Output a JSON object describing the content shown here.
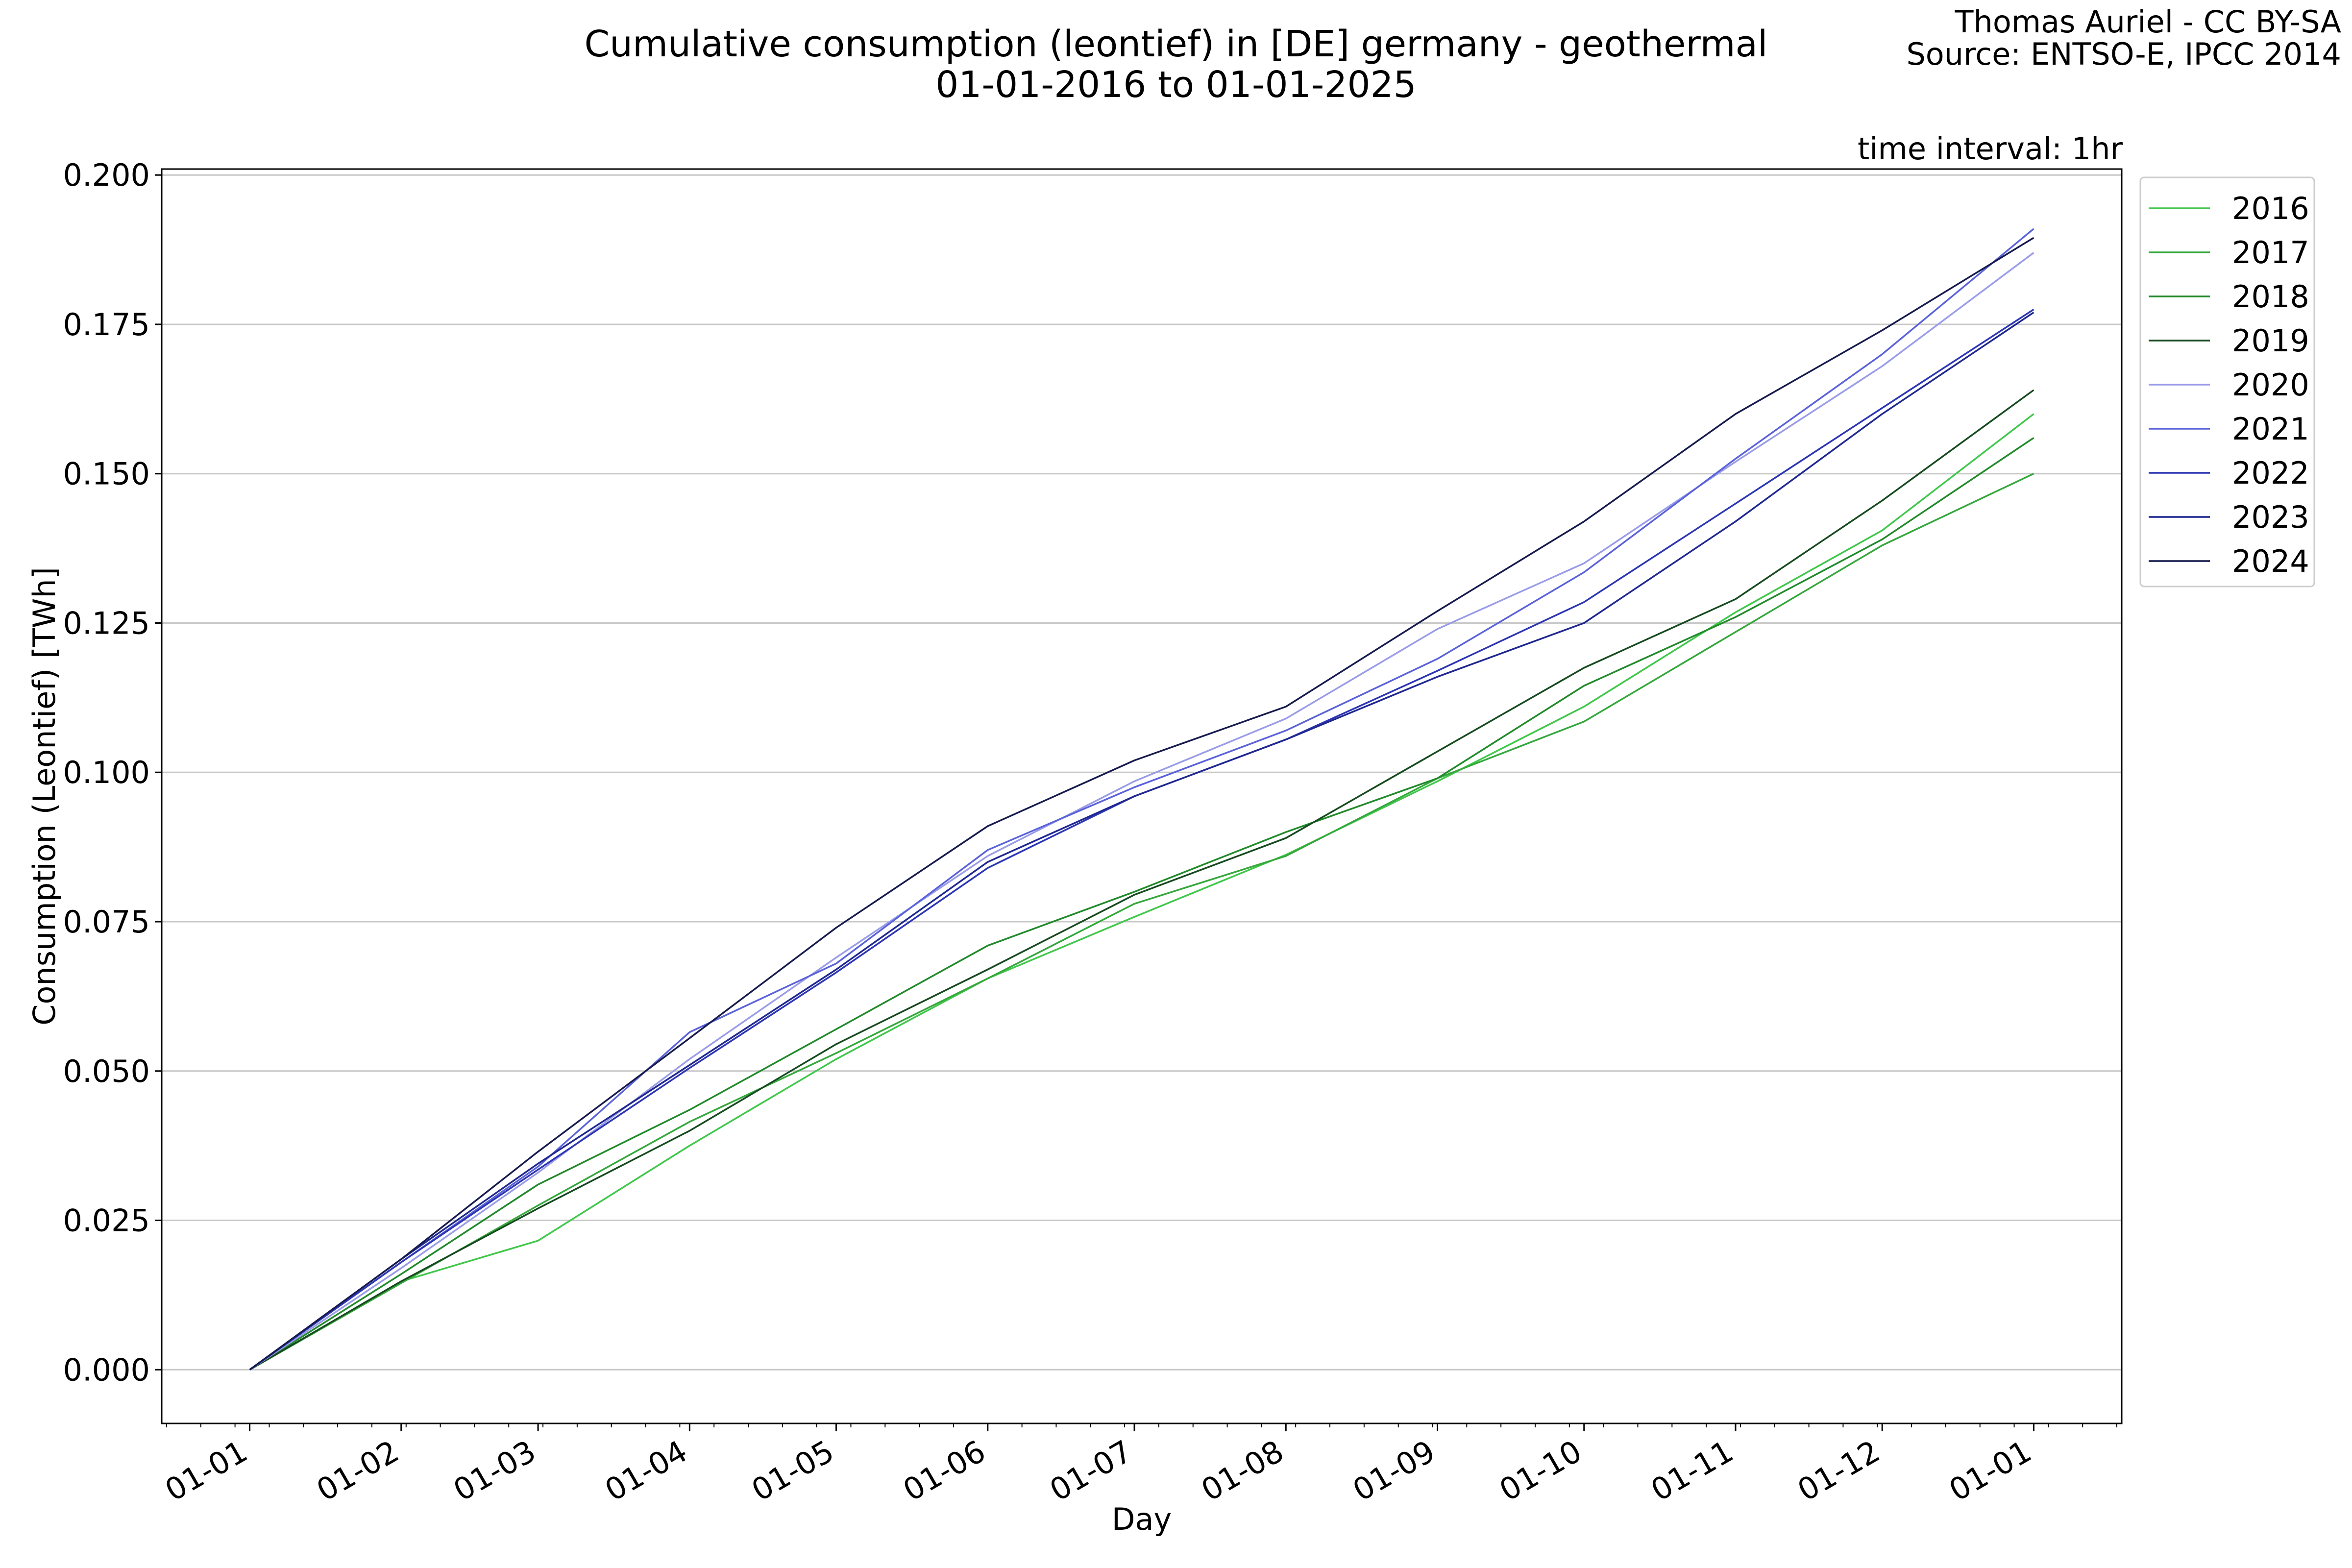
{
  "chart_data": {
    "type": "line",
    "title": "Cumulative consumption (leontief) in [DE] germany - geothermal",
    "subtitle": "01-01-2016 to 01-01-2025",
    "attribution": [
      "Thomas Auriel - CC BY-SA",
      "Source: ENTSO-E, IPCC 2014"
    ],
    "annotation": "time interval: 1hr",
    "xlabel": "Day",
    "ylabel": "Consumption (Leontief) [TWh]",
    "x_tick_labels": [
      "01-01",
      "01-02",
      "01-03",
      "01-04",
      "01-05",
      "01-06",
      "01-07",
      "01-08",
      "01-09",
      "01-10",
      "01-11",
      "01-12",
      "01-01"
    ],
    "x_tick_days": [
      0,
      31,
      59,
      90,
      120,
      151,
      181,
      212,
      243,
      273,
      304,
      334,
      365
    ],
    "xlim_days": [
      -18,
      383
    ],
    "ylim": [
      -0.009,
      0.201
    ],
    "y_ticks": [
      0.0,
      0.025,
      0.05,
      0.075,
      0.1,
      0.125,
      0.15,
      0.175,
      0.2
    ],
    "y_tick_labels": [
      "0.000",
      "0.025",
      "0.050",
      "0.075",
      "0.100",
      "0.125",
      "0.150",
      "0.175",
      "0.200"
    ],
    "grid": "horizontal",
    "legend_position": "outside-right",
    "x_days": [
      0,
      31,
      59,
      90,
      120,
      151,
      181,
      212,
      243,
      273,
      304,
      334,
      365
    ],
    "series": [
      {
        "name": "2016",
        "color": "#41c74b",
        "values": [
          0,
          0.0148,
          0.0216,
          0.0375,
          0.052,
          0.0655,
          0.0758,
          0.0862,
          0.0985,
          0.111,
          0.1268,
          0.1405,
          0.16
        ]
      },
      {
        "name": "2017",
        "color": "#35a83c",
        "values": [
          0,
          0.0145,
          0.0275,
          0.0415,
          0.053,
          0.0655,
          0.078,
          0.086,
          0.099,
          0.1085,
          0.1235,
          0.138,
          0.15
        ]
      },
      {
        "name": "2018",
        "color": "#218a2b",
        "values": [
          0,
          0.016,
          0.031,
          0.0435,
          0.057,
          0.071,
          0.08,
          0.09,
          0.099,
          0.1145,
          0.126,
          0.139,
          0.156
        ]
      },
      {
        "name": "2019",
        "color": "#164a1f",
        "values": [
          0,
          0.0148,
          0.027,
          0.04,
          0.0545,
          0.067,
          0.0795,
          0.089,
          0.1035,
          0.1175,
          0.129,
          0.1455,
          0.164
        ]
      },
      {
        "name": "2020",
        "color": "#9a9ce8",
        "values": [
          0,
          0.017,
          0.033,
          0.052,
          0.069,
          0.086,
          0.0985,
          0.109,
          0.124,
          0.135,
          0.152,
          0.168,
          0.187
        ]
      },
      {
        "name": "2021",
        "color": "#5a62d9",
        "values": [
          0,
          0.018,
          0.034,
          0.0565,
          0.068,
          0.087,
          0.0975,
          0.107,
          0.119,
          0.1335,
          0.1525,
          0.17,
          0.191
        ]
      },
      {
        "name": "2022",
        "color": "#2c35b3",
        "values": [
          0,
          0.018,
          0.0335,
          0.0505,
          0.0665,
          0.084,
          0.096,
          0.1055,
          0.117,
          0.1285,
          0.145,
          0.161,
          0.1775
        ]
      },
      {
        "name": "2023",
        "color": "#1f2790",
        "values": [
          0,
          0.0185,
          0.0345,
          0.051,
          0.067,
          0.085,
          0.096,
          0.1055,
          0.116,
          0.125,
          0.142,
          0.16,
          0.177
        ]
      },
      {
        "name": "2024",
        "color": "#161a4d",
        "values": [
          0,
          0.0185,
          0.0365,
          0.0555,
          0.074,
          0.091,
          0.102,
          0.111,
          0.127,
          0.142,
          0.16,
          0.174,
          0.1895
        ]
      }
    ]
  }
}
